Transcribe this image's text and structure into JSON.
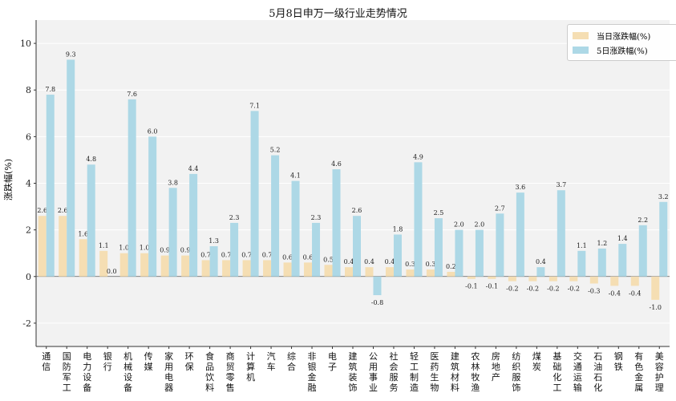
{
  "chart_data": {
    "type": "bar",
    "title": "5月8日申万一级行业走势情况",
    "xlabel": "",
    "ylabel": "涨跌幅(%)",
    "ylim": [
      -3,
      11
    ],
    "yticks": [
      -2,
      0,
      2,
      4,
      6,
      8,
      10
    ],
    "grid": "horizontal",
    "legend_position": "top-right",
    "categories": [
      "通信",
      "国防军工",
      "电力设备",
      "银行",
      "机械设备",
      "传媒",
      "家用电器",
      "环保",
      "食品饮料",
      "商贸零售",
      "计算机",
      "汽车",
      "综合",
      "非银金融",
      "电子",
      "建筑装饰",
      "公用事业",
      "社会服务",
      "轻工制造",
      "医药生物",
      "建筑材料",
      "农林牧渔",
      "房地产",
      "纺织服饰",
      "煤炭",
      "基础化工",
      "交通运输",
      "石油石化",
      "钢铁",
      "有色金属",
      "美容护理"
    ],
    "series": [
      {
        "name": "当日涨跌幅(%)",
        "color": "#f5deb3",
        "values": [
          2.6,
          2.6,
          1.6,
          1.1,
          1.0,
          1.0,
          0.9,
          0.9,
          0.7,
          0.7,
          0.7,
          0.7,
          0.6,
          0.6,
          0.5,
          0.4,
          0.4,
          0.4,
          0.3,
          0.3,
          0.2,
          -0.1,
          -0.1,
          -0.2,
          -0.2,
          -0.2,
          -0.2,
          -0.3,
          -0.4,
          -0.4,
          -1.0
        ]
      },
      {
        "name": "5日涨跌幅(%)",
        "color": "#add8e6",
        "values": [
          7.8,
          9.3,
          4.8,
          0.0,
          7.6,
          6.0,
          3.8,
          4.4,
          1.3,
          2.3,
          7.1,
          5.2,
          4.1,
          2.3,
          4.6,
          2.6,
          -0.8,
          1.8,
          4.9,
          2.5,
          2.0,
          2.0,
          2.7,
          3.6,
          0.4,
          3.7,
          1.1,
          1.2,
          1.4,
          2.2,
          3.2
        ]
      }
    ]
  }
}
